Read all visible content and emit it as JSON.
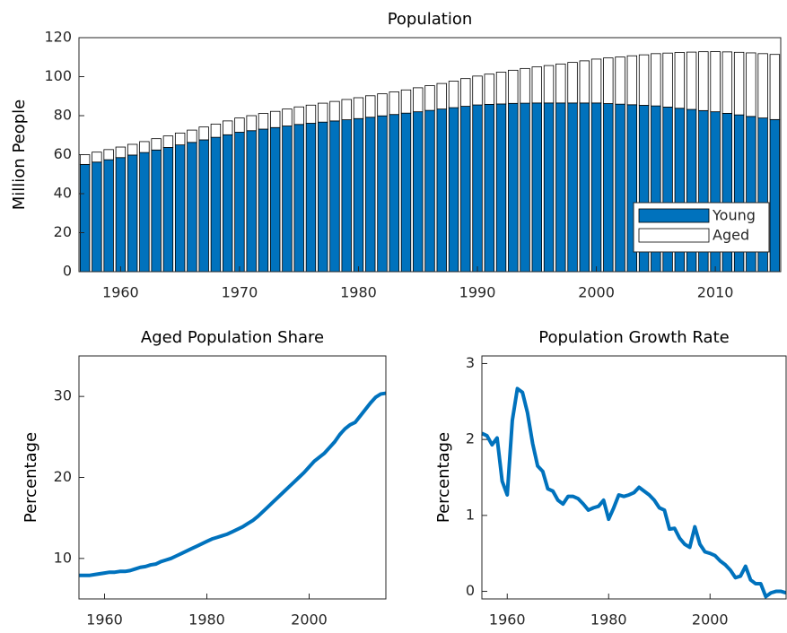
{
  "chart_data": [
    {
      "type": "bar",
      "stacked": true,
      "title": "Population",
      "ylabel": "Million People",
      "x": [
        1957,
        1958,
        1959,
        1960,
        1961,
        1962,
        1963,
        1964,
        1965,
        1966,
        1967,
        1968,
        1969,
        1970,
        1971,
        1972,
        1973,
        1974,
        1975,
        1976,
        1977,
        1978,
        1979,
        1980,
        1981,
        1982,
        1983,
        1984,
        1985,
        1986,
        1987,
        1988,
        1989,
        1990,
        1991,
        1992,
        1993,
        1994,
        1995,
        1996,
        1997,
        1998,
        1999,
        2000,
        2001,
        2002,
        2003,
        2004,
        2005,
        2006,
        2007,
        2008,
        2009,
        2010,
        2011,
        2012,
        2013,
        2014,
        2015
      ],
      "series": [
        {
          "name": "Young",
          "color": "#0072bd",
          "values": [
            55,
            56.2,
            57.4,
            58.5,
            59.8,
            61.1,
            62.4,
            63.7,
            65,
            66.3,
            67.6,
            68.9,
            70.2,
            71.5,
            72.3,
            73.1,
            73.9,
            74.7,
            75.5,
            76.1,
            76.7,
            77.3,
            77.9,
            78.5,
            79.2,
            79.9,
            80.6,
            81.3,
            82,
            82.7,
            83.4,
            84.1,
            84.8,
            85.5,
            85.8,
            86,
            86.3,
            86.4,
            86.5,
            86.5,
            86.5,
            86.5,
            86.5,
            86.5,
            86.2,
            85.9,
            85.6,
            85.3,
            85,
            84.4,
            83.8,
            83.2,
            82.6,
            82,
            81.2,
            80.4,
            79.6,
            78.8,
            78
          ]
        },
        {
          "name": "Aged",
          "color": "#ffffff",
          "values": [
            5,
            5.1,
            5.2,
            5.4,
            5.5,
            5.6,
            5.8,
            5.9,
            6.1,
            6.3,
            6.6,
            6.8,
            7.1,
            7.3,
            7.7,
            8,
            8.3,
            8.7,
            9,
            9.3,
            9.7,
            10,
            10.4,
            10.7,
            11,
            11.3,
            11.6,
            11.9,
            12.3,
            12.7,
            13.1,
            13.6,
            14.2,
            14.8,
            15.5,
            16.3,
            17,
            17.8,
            18.5,
            19.2,
            20,
            20.8,
            21.6,
            22.5,
            23.4,
            24.2,
            25.1,
            25.9,
            26.8,
            27.7,
            28.6,
            29.4,
            30.2,
            30.9,
            31.5,
            32.1,
            32.6,
            33,
            33.4
          ]
        }
      ],
      "xlim": [
        1956.5,
        2015.5
      ],
      "xticks": [
        1960,
        1970,
        1980,
        1990,
        2000,
        2010
      ],
      "ylim": [
        0,
        120
      ],
      "yticks": [
        0,
        20,
        40,
        60,
        80,
        100,
        120
      ],
      "legend": "lower right"
    },
    {
      "type": "line",
      "title": "Aged Population Share",
      "ylabel": "Percentage",
      "x": [
        1955,
        1956,
        1957,
        1958,
        1959,
        1960,
        1961,
        1962,
        1963,
        1964,
        1965,
        1966,
        1967,
        1968,
        1969,
        1970,
        1971,
        1972,
        1973,
        1974,
        1975,
        1976,
        1977,
        1978,
        1979,
        1980,
        1981,
        1982,
        1983,
        1984,
        1985,
        1986,
        1987,
        1988,
        1989,
        1990,
        1991,
        1992,
        1993,
        1994,
        1995,
        1996,
        1997,
        1998,
        1999,
        2000,
        2001,
        2002,
        2003,
        2004,
        2005,
        2006,
        2007,
        2008,
        2009,
        2010,
        2011,
        2012,
        2013,
        2014,
        2015
      ],
      "series": [
        {
          "name": "Aged Population Share",
          "color": "#0072bd",
          "values": [
            7.9,
            7.9,
            7.9,
            8,
            8.1,
            8.2,
            8.3,
            8.3,
            8.4,
            8.4,
            8.5,
            8.7,
            8.9,
            9,
            9.2,
            9.3,
            9.6,
            9.8,
            10,
            10.3,
            10.6,
            10.9,
            11.2,
            11.5,
            11.8,
            12.1,
            12.4,
            12.6,
            12.8,
            13,
            13.3,
            13.6,
            13.9,
            14.3,
            14.7,
            15.2,
            15.8,
            16.4,
            17,
            17.6,
            18.2,
            18.8,
            19.4,
            20,
            20.6,
            21.3,
            22,
            22.5,
            23,
            23.7,
            24.4,
            25.3,
            26,
            26.5,
            26.8,
            27.6,
            28.4,
            29.2,
            29.9,
            30.3,
            30.4
          ]
        }
      ],
      "xlim": [
        1955,
        2015
      ],
      "xticks": [
        1960,
        1980,
        2000
      ],
      "ylim": [
        5,
        35
      ],
      "yticks": [
        10,
        20,
        30
      ]
    },
    {
      "type": "line",
      "title": "Population Growth Rate",
      "ylabel": "Percentage",
      "x": [
        1955,
        1956,
        1957,
        1958,
        1959,
        1960,
        1961,
        1962,
        1963,
        1964,
        1965,
        1966,
        1967,
        1968,
        1969,
        1970,
        1971,
        1972,
        1973,
        1974,
        1975,
        1976,
        1977,
        1978,
        1979,
        1980,
        1981,
        1982,
        1983,
        1984,
        1985,
        1986,
        1987,
        1988,
        1989,
        1990,
        1991,
        1992,
        1993,
        1994,
        1995,
        1996,
        1997,
        1998,
        1999,
        2000,
        2001,
        2002,
        2003,
        2004,
        2005,
        2006,
        2007,
        2008,
        2009,
        2010,
        2011,
        2012,
        2013,
        2014,
        2015
      ],
      "series": [
        {
          "name": "Population Growth Rate",
          "color": "#0072bd",
          "values": [
            2.08,
            2.05,
            1.93,
            2.02,
            1.45,
            1.27,
            2.25,
            2.67,
            2.62,
            2.35,
            1.95,
            1.65,
            1.58,
            1.35,
            1.32,
            1.2,
            1.15,
            1.25,
            1.25,
            1.22,
            1.15,
            1.07,
            1.1,
            1.12,
            1.2,
            0.95,
            1.1,
            1.27,
            1.25,
            1.27,
            1.3,
            1.37,
            1.32,
            1.27,
            1.2,
            1.1,
            1.07,
            0.82,
            0.83,
            0.7,
            0.62,
            0.58,
            0.85,
            0.62,
            0.52,
            0.5,
            0.47,
            0.4,
            0.35,
            0.28,
            0.18,
            0.2,
            0.33,
            0.15,
            0.1,
            0.1,
            -0.07,
            -0.02,
            0,
            0,
            -0.02
          ]
        }
      ],
      "xlim": [
        1955,
        2015
      ],
      "xticks": [
        1960,
        1980,
        2000
      ],
      "ylim": [
        -0.1,
        3.1
      ],
      "yticks": [
        0,
        1,
        2,
        3
      ]
    }
  ]
}
